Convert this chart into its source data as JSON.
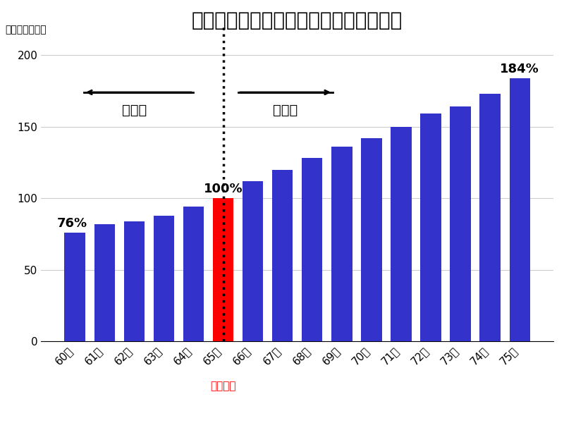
{
  "title": "繰上げ・繰下げ受給による年金額の増減",
  "ylabel": "（パーセント）",
  "categories": [
    "60歳",
    "61歳",
    "62歳",
    "63歳",
    "64歳",
    "65歳",
    "66歳",
    "67歳",
    "68歳",
    "69歳",
    "70歳",
    "71歳",
    "72歳",
    "73歳",
    "74歳",
    "75歳"
  ],
  "values": [
    76,
    82,
    84,
    88,
    94,
    100,
    112,
    120,
    128,
    136,
    142,
    150,
    159,
    164,
    173,
    184
  ],
  "bar_colors": [
    "#3333cc",
    "#3333cc",
    "#3333cc",
    "#3333cc",
    "#3333cc",
    "#ff0000",
    "#3333cc",
    "#3333cc",
    "#3333cc",
    "#3333cc",
    "#3333cc",
    "#3333cc",
    "#3333cc",
    "#3333cc",
    "#3333cc",
    "#3333cc"
  ],
  "label_first": "76%",
  "label_standard": "100%",
  "label_last": "184%",
  "standard_index": 5,
  "standard_label": "（標準）",
  "arrow_left_label": "繰上げ",
  "arrow_right_label": "繰下げ",
  "ylim": [
    0,
    210
  ],
  "yticks": [
    0,
    50,
    100,
    150,
    200
  ],
  "background_color": "#ffffff",
  "grid_color": "#cccccc",
  "title_fontsize": 20,
  "axis_fontsize": 11,
  "bar_label_fontsize": 13,
  "annotation_fontsize": 14
}
